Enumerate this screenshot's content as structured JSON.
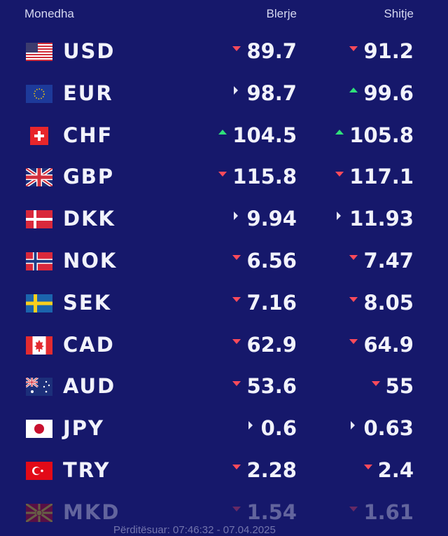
{
  "header": {
    "name_label": "Monedha",
    "buy_label": "Blerje",
    "sell_label": "Shitje"
  },
  "colors": {
    "background": "#16186b",
    "down": "#ff4a5a",
    "up": "#2fe07a",
    "flat": "#e6e7f5"
  },
  "rates": [
    {
      "code": "USD",
      "flag": "usa-flag-icon",
      "buy": "89.7",
      "buy_trend": "down",
      "sell": "91.2",
      "sell_trend": "down"
    },
    {
      "code": "EUR",
      "flag": "eu-flag-icon",
      "buy": "98.7",
      "buy_trend": "flat",
      "sell": "99.6",
      "sell_trend": "up"
    },
    {
      "code": "CHF",
      "flag": "switzerland-flag-icon",
      "buy": "104.5",
      "buy_trend": "up",
      "sell": "105.8",
      "sell_trend": "up"
    },
    {
      "code": "GBP",
      "flag": "uk-flag-icon",
      "buy": "115.8",
      "buy_trend": "down",
      "sell": "117.1",
      "sell_trend": "down"
    },
    {
      "code": "DKK",
      "flag": "denmark-flag-icon",
      "buy": "9.94",
      "buy_trend": "flat",
      "sell": "11.93",
      "sell_trend": "flat"
    },
    {
      "code": "NOK",
      "flag": "norway-flag-icon",
      "buy": "6.56",
      "buy_trend": "down",
      "sell": "7.47",
      "sell_trend": "down"
    },
    {
      "code": "SEK",
      "flag": "sweden-flag-icon",
      "buy": "7.16",
      "buy_trend": "down",
      "sell": "8.05",
      "sell_trend": "down"
    },
    {
      "code": "CAD",
      "flag": "canada-flag-icon",
      "buy": "62.9",
      "buy_trend": "down",
      "sell": "64.9",
      "sell_trend": "down"
    },
    {
      "code": "AUD",
      "flag": "australia-flag-icon",
      "buy": "53.6",
      "buy_trend": "down",
      "sell": "55",
      "sell_trend": "down"
    },
    {
      "code": "JPY",
      "flag": "japan-flag-icon",
      "buy": "0.6",
      "buy_trend": "flat",
      "sell": "0.63",
      "sell_trend": "flat"
    },
    {
      "code": "TRY",
      "flag": "turkey-flag-icon",
      "buy": "2.28",
      "buy_trend": "down",
      "sell": "2.4",
      "sell_trend": "down"
    },
    {
      "code": "MKD",
      "flag": "macedonia-flag-icon",
      "buy": "1.54",
      "buy_trend": "down",
      "sell": "1.61",
      "sell_trend": "down"
    }
  ],
  "footer": {
    "updated_text": "Përditësuar: 07:46:32 - 07.04.2025"
  }
}
